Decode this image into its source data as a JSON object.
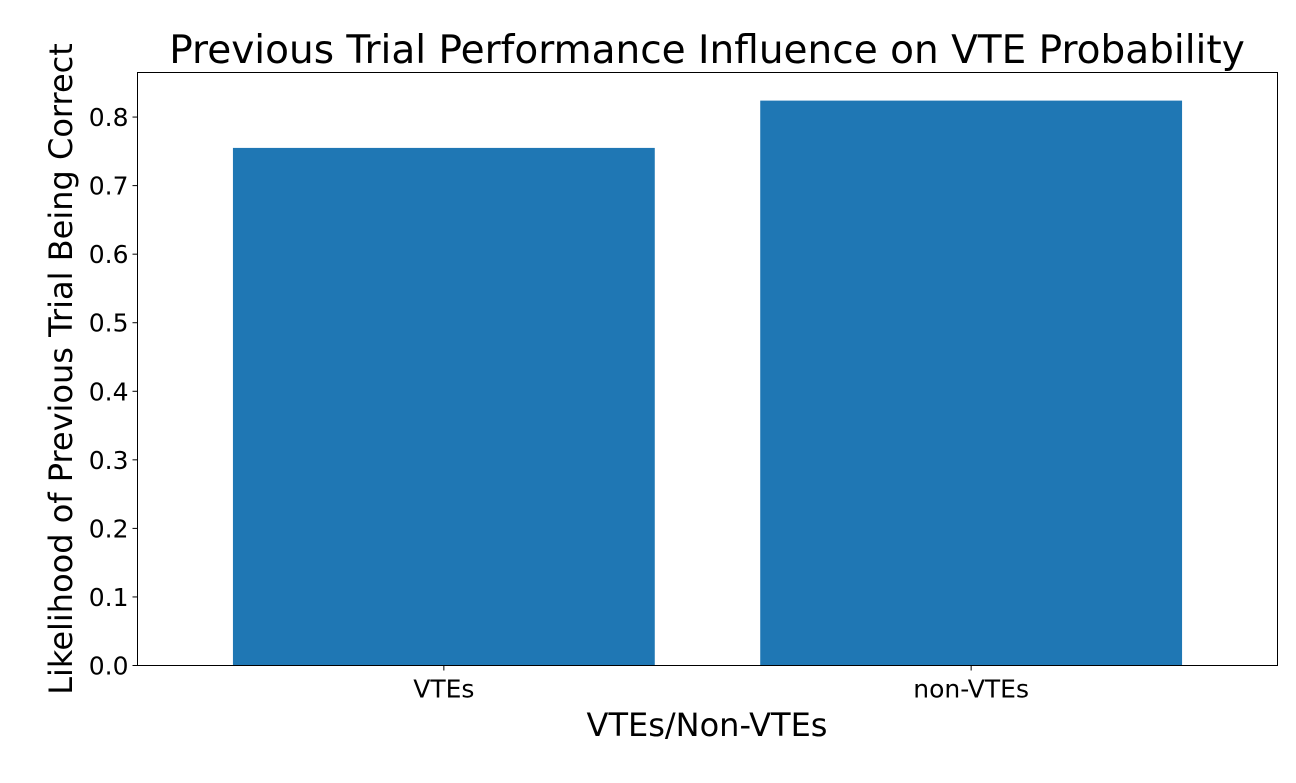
{
  "chart_data": {
    "type": "bar",
    "title": "Previous Trial Performance Influence on VTE Probability",
    "xlabel": "VTEs/Non-VTEs",
    "ylabel": "Likelihood of Previous Trial Being Correct",
    "categories": [
      "VTEs",
      "non-VTEs"
    ],
    "values": [
      0.755,
      0.824
    ],
    "ylim": [
      0,
      0.865
    ],
    "yticks": [
      "0.0",
      "0.1",
      "0.2",
      "0.3",
      "0.4",
      "0.5",
      "0.6",
      "0.7",
      "0.8"
    ],
    "grid": false,
    "bar_color": "#1f77b4"
  }
}
